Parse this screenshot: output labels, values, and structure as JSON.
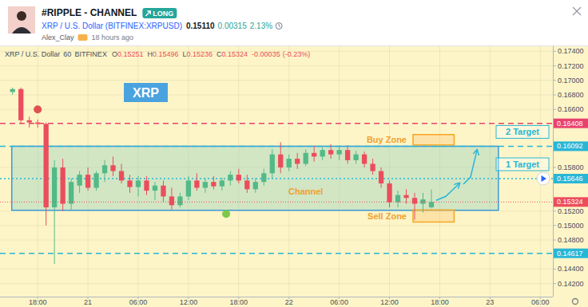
{
  "header": {
    "title": "#RIPPLE - CHANNEL",
    "badge": "LONG",
    "symbol": "XRP / U.S. Dollar (BITFINEX:XRPUSD)",
    "price": "0.15110",
    "change": "0.00315",
    "change_pct": "2.13%",
    "author": "Alex_Clay",
    "time": "18 hours ago"
  },
  "chart_data": {
    "type": "candlestick",
    "title": "XRP",
    "info_line": {
      "symbol": "XRP / U.S. Dollar",
      "interval": "60",
      "exchange": "BITFINEX",
      "change": -0.00035,
      "change_pct": "(-0.23%)"
    },
    "categories": [
      null,
      null,
      null,
      null,
      "18:00",
      null,
      null,
      null,
      null,
      null,
      "21",
      null,
      null,
      null,
      null,
      null,
      "06:00",
      null,
      null,
      null,
      null,
      null,
      "12:00",
      null,
      null,
      null,
      null,
      null,
      "18:00",
      null,
      null,
      null,
      null,
      null,
      "22",
      null,
      null,
      null,
      null,
      null,
      "06:00",
      null,
      null,
      null,
      null,
      null,
      "12:00",
      null,
      null,
      null,
      null,
      null,
      "18:00",
      null,
      null,
      null,
      null,
      null,
      "23",
      null,
      null,
      null,
      null,
      null,
      "06:00",
      null
    ],
    "series": [
      {
        "name": "O",
        "values": [
          null,
          0.1684,
          0.1688,
          0.1645,
          0.1642,
          0.164,
          0.1525,
          0.158,
          0.153,
          0.1555,
          0.157,
          0.1552,
          0.1572,
          0.1583,
          0.1575,
          0.1562,
          0.1553,
          0.1562,
          0.1548,
          0.1555,
          0.154,
          0.1528,
          0.154,
          0.1562,
          0.1552,
          0.156,
          0.1554,
          0.1562,
          0.157,
          0.1562,
          0.155,
          0.156,
          0.1572,
          0.1598,
          0.158,
          0.1592,
          0.1585,
          0.16,
          0.1595,
          0.1604,
          0.1598,
          0.1604,
          0.159,
          0.1598,
          0.1585,
          0.1575,
          0.1558,
          0.1532,
          0.1542,
          0.1538,
          0.153,
          0.15251,
          null,
          null,
          null,
          null,
          null,
          null,
          null,
          null,
          null,
          null,
          null,
          null,
          null,
          null
        ]
      },
      {
        "name": "H",
        "values": [
          null,
          0.169,
          0.169,
          0.165,
          0.1646,
          0.1642,
          0.159,
          0.1592,
          0.1565,
          0.1575,
          0.158,
          0.1575,
          0.159,
          0.1595,
          0.1585,
          0.157,
          0.1568,
          0.1568,
          0.156,
          0.1562,
          0.1552,
          0.1545,
          0.1568,
          0.1572,
          0.1565,
          0.1568,
          0.1566,
          0.1575,
          0.1578,
          0.157,
          0.1565,
          0.1578,
          0.1605,
          0.1615,
          0.1598,
          0.16,
          0.1605,
          0.161,
          0.1608,
          0.1612,
          0.161,
          0.161,
          0.1603,
          0.1602,
          0.1592,
          0.158,
          0.1562,
          0.1548,
          0.155,
          0.1545,
          0.1545,
          0.15496,
          null,
          null,
          null,
          null,
          null,
          null,
          null,
          null,
          null,
          null,
          null,
          null,
          null,
          null
        ]
      },
      {
        "name": "L",
        "values": [
          null,
          0.168,
          0.164,
          0.1635,
          0.1635,
          0.15,
          0.1447,
          0.152,
          0.1522,
          0.1545,
          0.1548,
          0.1548,
          0.156,
          0.1568,
          0.1558,
          0.1545,
          0.154,
          0.1542,
          0.1535,
          0.1533,
          0.1522,
          0.1525,
          0.1535,
          0.1548,
          0.1545,
          0.155,
          0.1548,
          0.1555,
          0.1558,
          0.1545,
          0.1545,
          0.1555,
          0.1565,
          0.1572,
          0.1575,
          0.1578,
          0.1582,
          0.1588,
          0.159,
          0.1592,
          0.159,
          0.1585,
          0.1585,
          0.158,
          0.157,
          0.1552,
          0.1525,
          0.1525,
          0.153,
          0.1508,
          0.1518,
          0.15236,
          null,
          null,
          null,
          null,
          null,
          null,
          null,
          null,
          null,
          null,
          null,
          null,
          null,
          null
        ]
      },
      {
        "name": "C",
        "values": [
          null,
          0.1688,
          0.1645,
          0.1642,
          0.164,
          0.1525,
          0.158,
          0.153,
          0.156,
          0.157,
          0.1552,
          0.1572,
          0.1583,
          0.1575,
          0.1562,
          0.1553,
          0.1562,
          0.1548,
          0.1555,
          0.154,
          0.1528,
          0.154,
          0.1562,
          0.1552,
          0.156,
          0.1554,
          0.1562,
          0.157,
          0.1562,
          0.155,
          0.156,
          0.1572,
          0.1598,
          0.158,
          0.1592,
          0.1585,
          0.16,
          0.1595,
          0.1604,
          0.1598,
          0.1604,
          0.159,
          0.1598,
          0.1585,
          0.1575,
          0.1558,
          0.1532,
          0.1542,
          0.1538,
          0.153,
          0.15359,
          0.15324,
          null,
          null,
          null,
          null,
          null,
          null,
          null,
          null,
          null,
          null,
          null,
          null,
          null,
          null
        ]
      }
    ],
    "ylim": [
      0.1402,
      0.1747
    ],
    "yticks": [
      {
        "value": 0.142,
        "label": "0.14200"
      },
      {
        "value": 0.144,
        "label": "0.14400"
      },
      {
        "value": 0.148,
        "label": "0.14800"
      },
      {
        "value": 0.15,
        "label": "0.15000"
      },
      {
        "value": 0.152,
        "label": "0.15200"
      },
      {
        "value": 0.158,
        "label": "0.15800"
      },
      {
        "value": 0.166,
        "label": "0.16600"
      },
      {
        "value": 0.168,
        "label": "0.16800"
      },
      {
        "value": 0.17,
        "label": "0.17000"
      },
      {
        "value": 0.172,
        "label": "0.17200"
      },
      {
        "value": 0.174,
        "label": "0.17400"
      }
    ],
    "grid": true,
    "annotations": {
      "channel": {
        "label": "Channel",
        "top": 0.16092,
        "bottom": 0.1521,
        "color": "#3a9ad9"
      },
      "buy_zone": {
        "label": "Buy Zone",
        "top": 0.16253,
        "bottom": 0.16109
      },
      "sell_zone": {
        "label": "Sell Zone",
        "top": 0.15214,
        "bottom": 0.15048
      },
      "targets": [
        {
          "label": "1 Target",
          "value": 0.15646
        },
        {
          "label": "2 Target",
          "value": 0.16092
        }
      ],
      "levels": [
        {
          "value": 0.16408,
          "color": "#e8436f",
          "line_style": "dashed"
        },
        {
          "value": 0.16092,
          "color": "#29b6d6",
          "line_style": "dashed"
        },
        {
          "value": 0.15646,
          "color": "#29b6d6",
          "line_style": "dotted"
        },
        {
          "value": 0.14617,
          "color": "#29b6d6",
          "line_style": "dashed"
        }
      ],
      "dots": [
        {
          "value": 0.166,
          "color": "#e0524f"
        },
        {
          "value": 0.1516,
          "color": "#7cc84a"
        }
      ]
    }
  }
}
